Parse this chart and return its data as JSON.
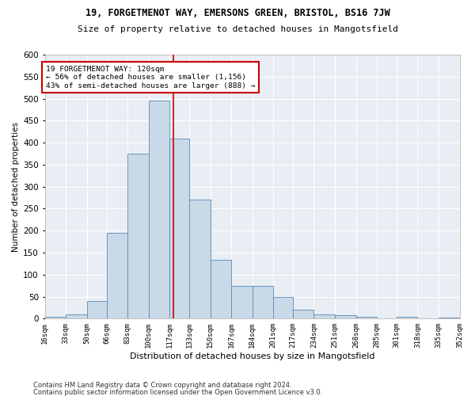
{
  "title1": "19, FORGETMENOT WAY, EMERSONS GREEN, BRISTOL, BS16 7JW",
  "title2": "Size of property relative to detached houses in Mangotsfield",
  "xlabel": "Distribution of detached houses by size in Mangotsfield",
  "ylabel": "Number of detached properties",
  "bin_edges": [
    16,
    33,
    50,
    66,
    83,
    100,
    117,
    133,
    150,
    167,
    184,
    201,
    217,
    234,
    251,
    268,
    285,
    301,
    318,
    335,
    352
  ],
  "bin_labels": [
    "16sqm",
    "33sqm",
    "50sqm",
    "66sqm",
    "83sqm",
    "100sqm",
    "117sqm",
    "133sqm",
    "150sqm",
    "167sqm",
    "184sqm",
    "201sqm",
    "217sqm",
    "234sqm",
    "251sqm",
    "268sqm",
    "285sqm",
    "301sqm",
    "318sqm",
    "335sqm",
    "352sqm"
  ],
  "counts": [
    5,
    10,
    40,
    195,
    375,
    495,
    410,
    270,
    133,
    75,
    75,
    50,
    20,
    10,
    8,
    5,
    0,
    5,
    0,
    2
  ],
  "bar_facecolor": "#c9d9e8",
  "bar_edgecolor": "#5a8ab5",
  "vline_x": 120,
  "vline_color": "#cc0000",
  "ylim": [
    0,
    600
  ],
  "yticks": [
    0,
    50,
    100,
    150,
    200,
    250,
    300,
    350,
    400,
    450,
    500,
    550,
    600
  ],
  "annotation_text": "19 FORGETMENOT WAY: 120sqm\n← 56% of detached houses are smaller (1,156)\n43% of semi-detached houses are larger (888) →",
  "annotation_box_color": "#cc0000",
  "background_color": "#e8eef4",
  "footer1": "Contains HM Land Registry data © Crown copyright and database right 2024.",
  "footer2": "Contains public sector information licensed under the Open Government Licence v3.0."
}
